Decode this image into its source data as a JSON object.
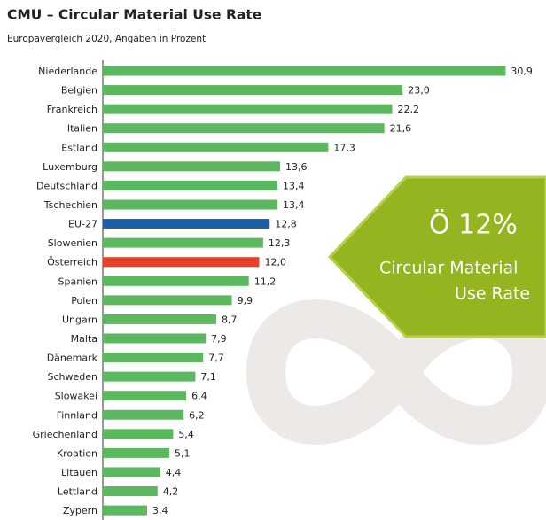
{
  "chart_data": {
    "type": "bar",
    "orientation": "horizontal",
    "title": "CMU – Circular Material Use Rate",
    "subtitle": "Europavergleich 2020, Angaben in Prozent",
    "categories": [
      "Niederlande",
      "Belgien",
      "Frankreich",
      "Italien",
      "Estland",
      "Luxemburg",
      "Deutschland",
      "Tschechien",
      "EU-27",
      "Slowenien",
      "Österreich",
      "Spanien",
      "Polen",
      "Ungarn",
      "Malta",
      "Dänemark",
      "Schweden",
      "Slowakei",
      "Finnland",
      "Griechenland",
      "Kroatien",
      "Litauen",
      "Lettland",
      "Zypern"
    ],
    "values": [
      30.9,
      23.0,
      22.2,
      21.6,
      17.3,
      13.6,
      13.4,
      13.4,
      12.8,
      12.3,
      12.0,
      11.2,
      9.9,
      8.7,
      7.9,
      7.7,
      7.1,
      6.4,
      6.2,
      5.4,
      5.1,
      4.4,
      4.2,
      3.4
    ],
    "value_labels": [
      "30,9",
      "23,0",
      "22,2",
      "21,6",
      "17,3",
      "13,6",
      "13,4",
      "13,4",
      "12,8",
      "12,3",
      "12,0",
      "11,2",
      "9,9",
      "8,7",
      "7,9",
      "7,7",
      "7,1",
      "6,4",
      "6,2",
      "5,4",
      "5,1",
      "4,4",
      "4,2",
      "3,4"
    ],
    "colors": [
      "#5cb85f",
      "#5cb85f",
      "#5cb85f",
      "#5cb85f",
      "#5cb85f",
      "#5cb85f",
      "#5cb85f",
      "#5cb85f",
      "#1d5fa6",
      "#5cb85f",
      "#e5412b",
      "#5cb85f",
      "#5cb85f",
      "#5cb85f",
      "#5cb85f",
      "#5cb85f",
      "#5cb85f",
      "#5cb85f",
      "#5cb85f",
      "#5cb85f",
      "#5cb85f",
      "#5cb85f",
      "#5cb85f",
      "#5cb85f"
    ],
    "xlim": [
      0,
      34
    ],
    "annotations": [
      "Ö 12%",
      "Circular Material",
      "Use Rate"
    ]
  }
}
